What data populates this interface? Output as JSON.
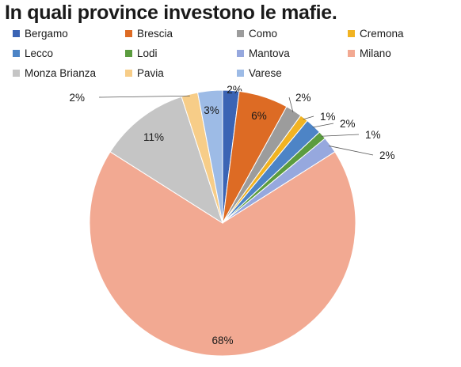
{
  "chart_data": {
    "type": "pie",
    "title": "In quali province investono le mafie.",
    "legend_position": "top",
    "slices": [
      {
        "label": "Bergamo",
        "value": 2,
        "display": "2%",
        "color": "#3b64b4"
      },
      {
        "label": "Brescia",
        "value": 6,
        "display": "6%",
        "color": "#dd6b24"
      },
      {
        "label": "Como",
        "value": 2,
        "display": "2%",
        "color": "#9c9c9c"
      },
      {
        "label": "Cremona",
        "value": 1,
        "display": "1%",
        "color": "#f1b322"
      },
      {
        "label": "Lecco",
        "value": 2,
        "display": "2%",
        "color": "#4d84c6"
      },
      {
        "label": "Lodi",
        "value": 1,
        "display": "1%",
        "color": "#5b9c3f"
      },
      {
        "label": "Mantova",
        "value": 2,
        "display": "2%",
        "color": "#96a8de"
      },
      {
        "label": "Milano",
        "value": 68,
        "display": "68%",
        "color": "#f2a992"
      },
      {
        "label": "Monza Brianza",
        "value": 11,
        "display": "11%",
        "color": "#c5c5c5"
      },
      {
        "label": "Pavia",
        "value": 2,
        "display": "2%",
        "color": "#f7cd88"
      },
      {
        "label": "Varese",
        "value": 3,
        "display": "3%",
        "color": "#9dbbe6"
      }
    ]
  }
}
